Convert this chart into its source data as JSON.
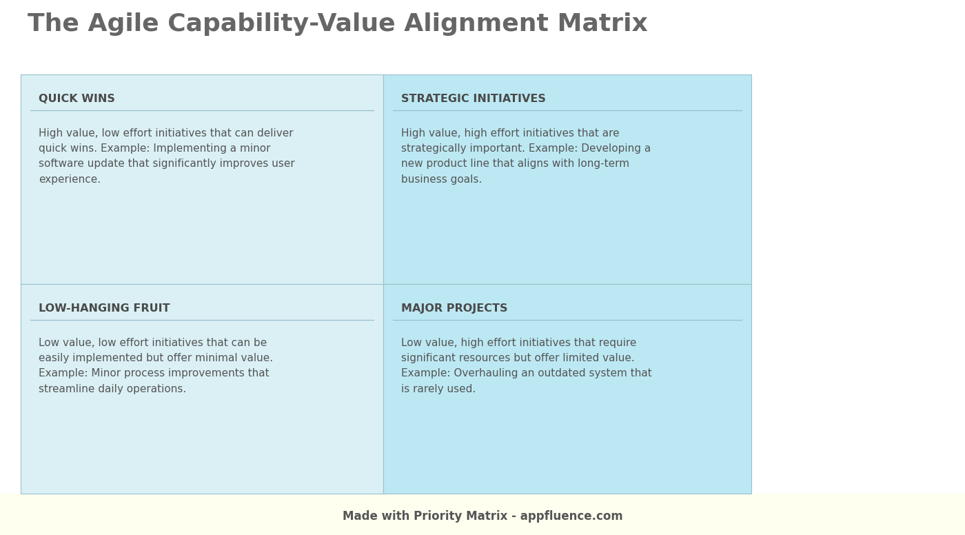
{
  "title": "The Agile Capability-Value Alignment Matrix",
  "title_fontsize": 26,
  "title_color": "#666666",
  "title_fontweight": "bold",
  "background_color": "#ffffff",
  "footer_bg_color": "#fffff0",
  "footer": "Made with Priority Matrix - appfluence.com",
  "footer_fontsize": 12,
  "footer_color": "#555555",
  "quadrants": [
    {
      "title": "QUICK WINS",
      "body": "High value, low effort initiatives that can deliver\nquick wins. Example: Implementing a minor\nsoftware update that significantly improves user\nexperience.",
      "position": "top-left",
      "bg_color": "#daf0f5"
    },
    {
      "title": "STRATEGIC INITIATIVES",
      "body": "High value, high effort initiatives that are\nstrategically important. Example: Developing a\nnew product line that aligns with long-term\nbusiness goals.",
      "position": "top-right",
      "bg_color": "#bce8f3"
    },
    {
      "title": "LOW-HANGING FRUIT",
      "body": "Low value, low effort initiatives that can be\neasily implemented but offer minimal value.\nExample: Minor process improvements that\nstreamline daily operations.",
      "position": "bottom-left",
      "bg_color": "#daf0f5"
    },
    {
      "title": "MAJOR PROJECTS",
      "body": "Low value, high effort initiatives that require\nsignificant resources but offer limited value.\nExample: Overhauling an outdated system that\nis rarely used.",
      "position": "bottom-right",
      "bg_color": "#bce8f3"
    }
  ],
  "quadrant_title_fontsize": 11.5,
  "quadrant_title_color": "#4a4a4a",
  "quadrant_body_fontsize": 11,
  "quadrant_body_color": "#555555",
  "divider_color": "#99c0cc",
  "border_color": "#99c0cc"
}
